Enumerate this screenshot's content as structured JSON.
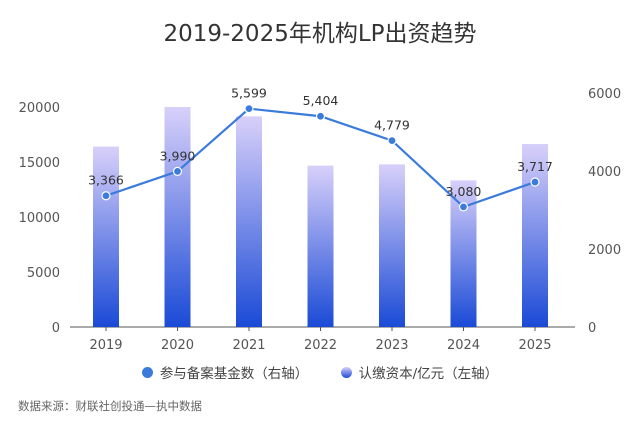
{
  "chart_data": {
    "type": "bar+line",
    "title": "2019-2025年机构LP出资趋势",
    "categories": [
      "2019",
      "2020",
      "2021",
      "2022",
      "2023",
      "2024",
      "2025"
    ],
    "series": [
      {
        "name": "认缴资本/亿元（左轴）",
        "type": "bar",
        "axis": "left",
        "values": [
          16400,
          20000,
          19150,
          14670,
          14790,
          13330,
          16640
        ]
      },
      {
        "name": "参与备案基金数（右轴）",
        "type": "line",
        "axis": "right",
        "values": [
          3366,
          3990,
          5599,
          5404,
          4779,
          3080,
          3717
        ],
        "labels": [
          "3,366",
          "3,990",
          "5,599",
          "5,404",
          "4,779",
          "3,080",
          "3,717"
        ]
      }
    ],
    "left_axis": {
      "range": [
        0,
        20000
      ],
      "ticks": [
        "0",
        "5000",
        "10000",
        "15000",
        "20000"
      ]
    },
    "right_axis": {
      "range": [
        0,
        6000
      ],
      "ticks": [
        "0",
        "2000",
        "4000",
        "6000"
      ]
    },
    "grid": false,
    "legend_position": "bottom",
    "colors": {
      "bar_top": "#d8d0fa",
      "bar_bottom": "#1a4ad6",
      "line": "#3a7bdc"
    }
  },
  "source": "数据来源：财联社创投通—执中数据"
}
